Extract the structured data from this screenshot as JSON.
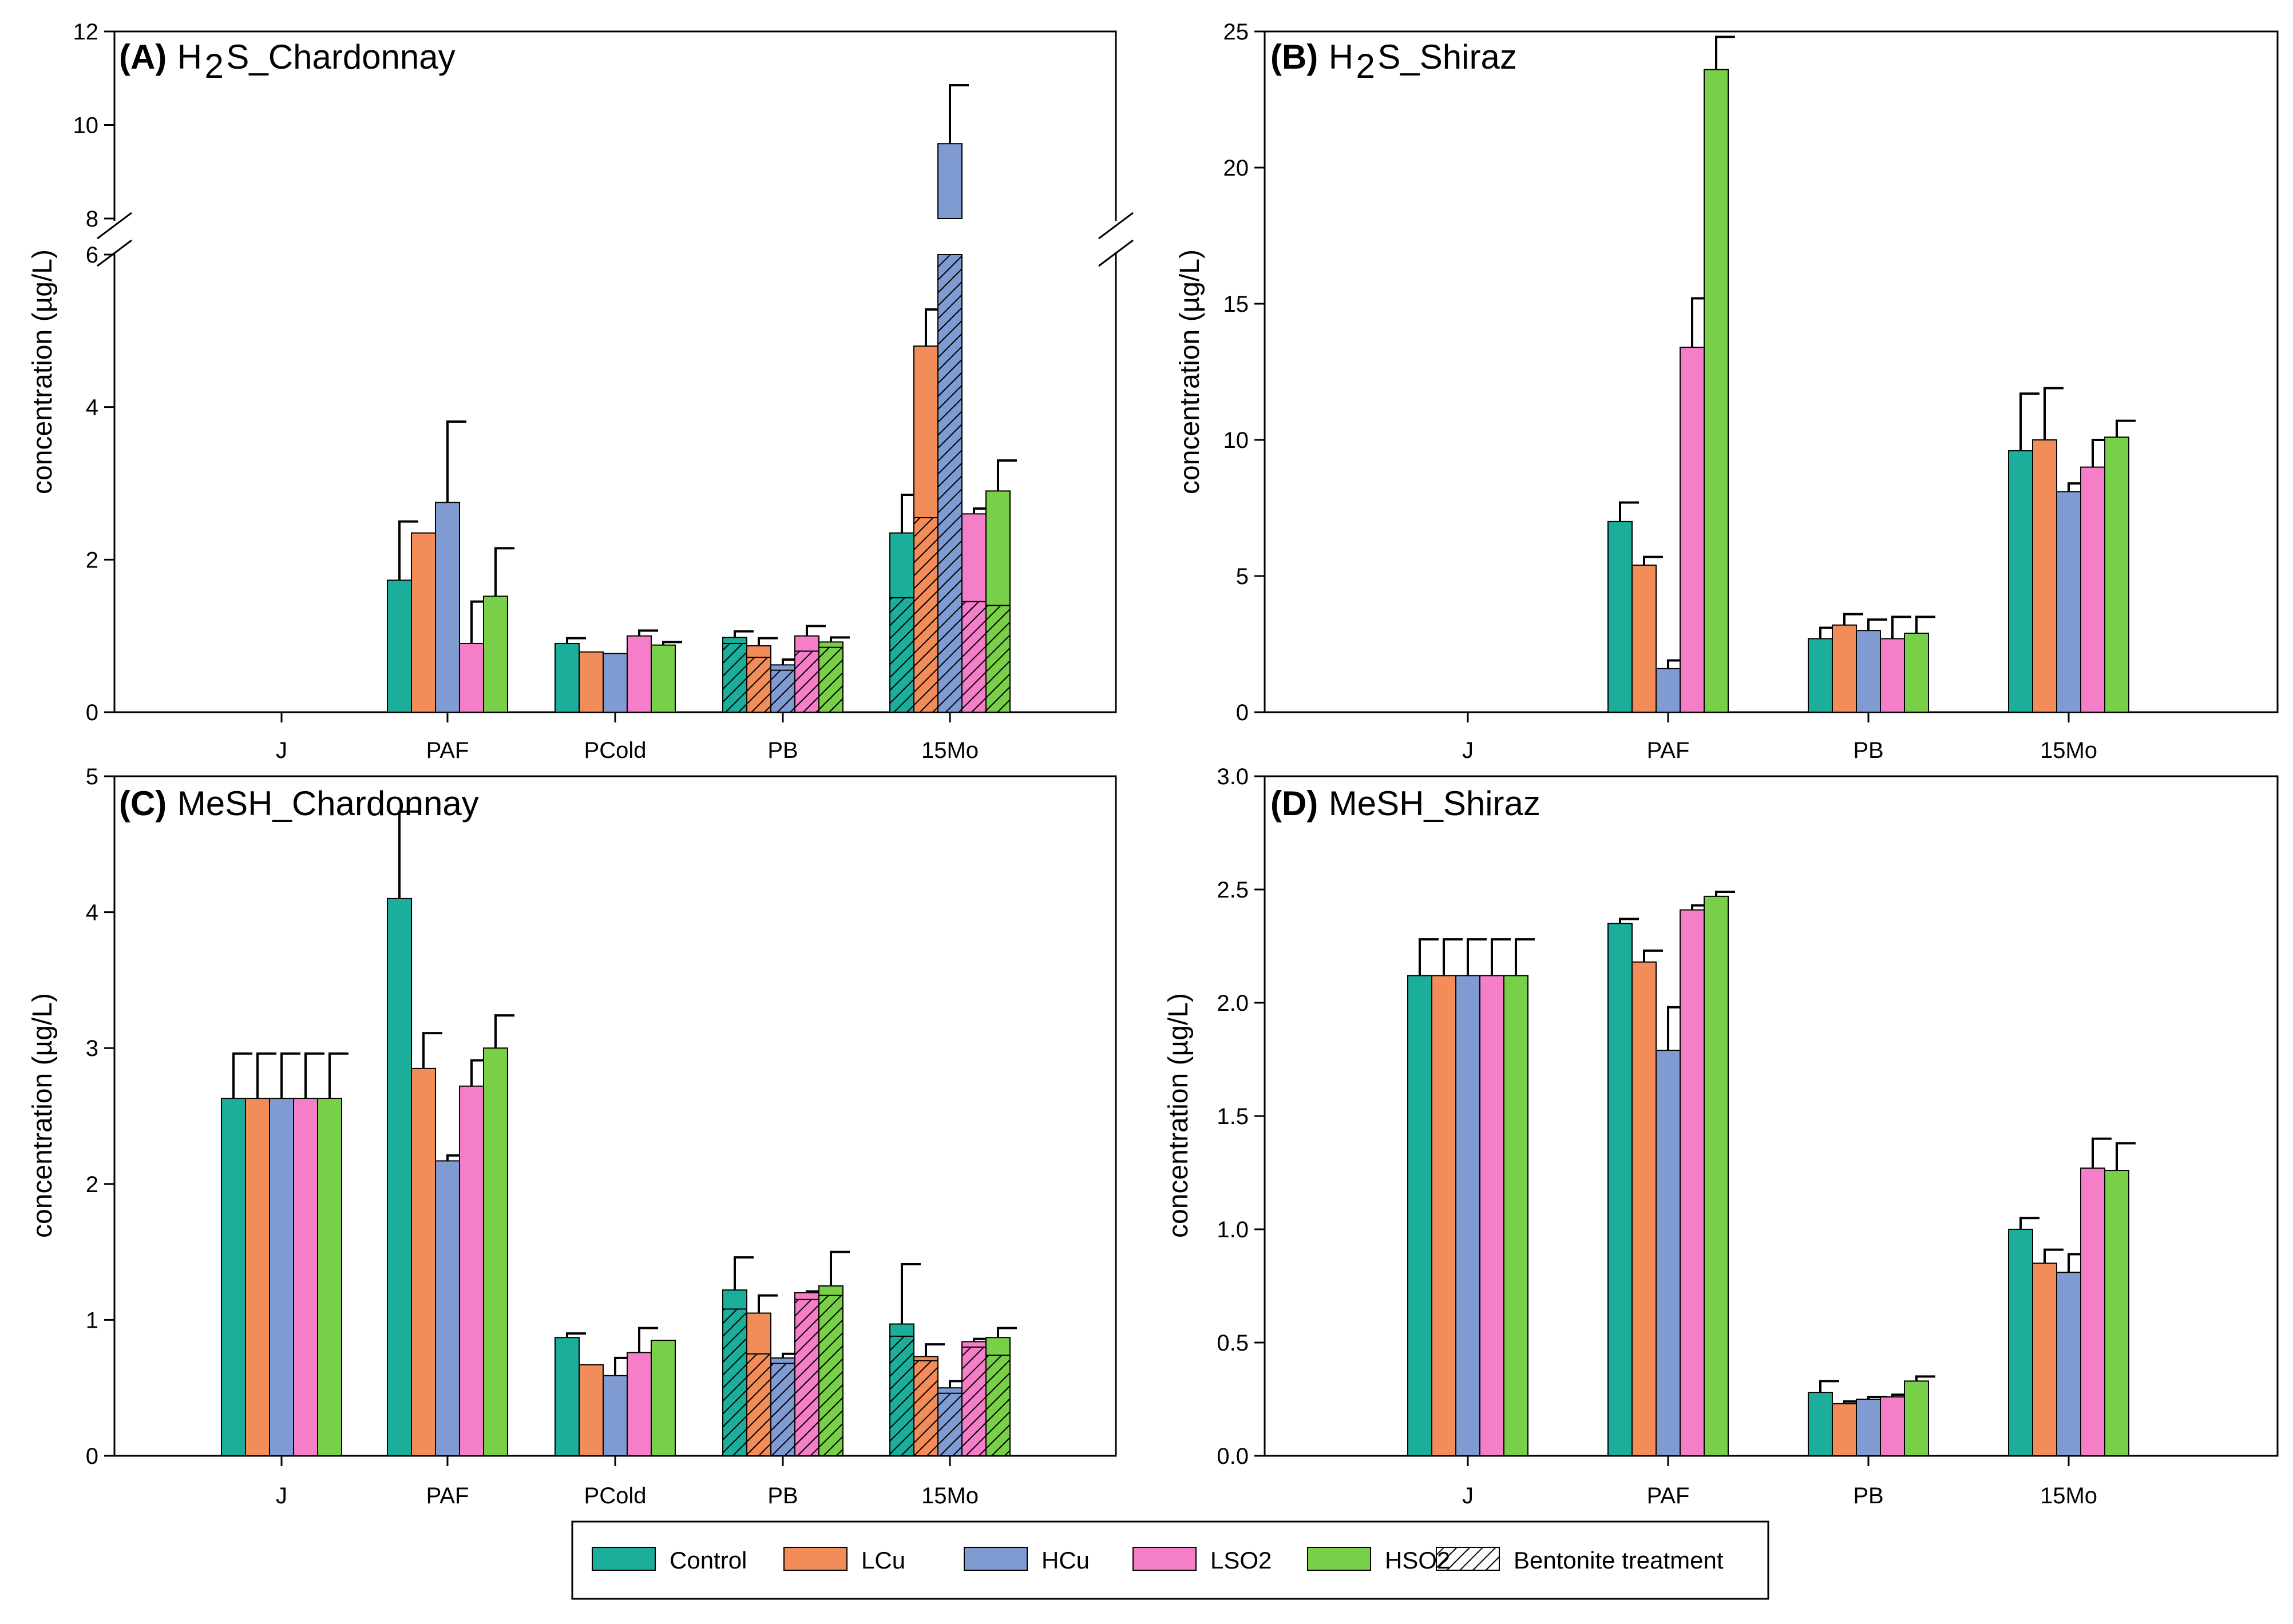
{
  "colors": {
    "Control": "#1bae9a",
    "LCu": "#f28c58",
    "HCu": "#7f9bd1",
    "LSO2": "#f47ec8",
    "HSO2": "#78cf48"
  },
  "legend": {
    "items": [
      "Control",
      "LCu",
      "HCu",
      "LSO2",
      "HSO2"
    ],
    "bentonite_label": "Bentonite treatment"
  },
  "chart_data": [
    {
      "type": "bar",
      "panel": "(A)",
      "title_main": "H",
      "title_sub": "2",
      "title_rest": "S_Chardonnay",
      "ylabel": "concentration (µg/L)",
      "xlabel": "",
      "categories": [
        "J",
        "PAF",
        "PCold",
        "PB",
        "15Mo"
      ],
      "axis_break": {
        "lower": [
          0,
          6
        ],
        "upper": [
          8,
          12
        ]
      },
      "yticks_lower": [
        "0",
        "2",
        "4",
        "6"
      ],
      "yticks_upper": [
        "8",
        "10",
        "12"
      ],
      "series": [
        {
          "name": "Control",
          "values": [
            null,
            1.73,
            0.9,
            0.98,
            2.35
          ],
          "errors": [
            null,
            0.77,
            0.07,
            0.08,
            0.5
          ]
        },
        {
          "name": "LCu",
          "values": [
            null,
            2.35,
            0.79,
            0.87,
            4.8
          ],
          "errors": [
            null,
            0,
            0,
            0.1,
            0.48
          ]
        },
        {
          "name": "HCu",
          "values": [
            null,
            2.75,
            0.77,
            0.62,
            9.6
          ],
          "errors": [
            null,
            1.06,
            0,
            0.07,
            1.25
          ]
        },
        {
          "name": "LSO2",
          "values": [
            null,
            0.9,
            1.0,
            1.0,
            2.6
          ],
          "errors": [
            null,
            0.55,
            0.07,
            0.13,
            0.07
          ]
        },
        {
          "name": "HSO2",
          "values": [
            null,
            1.52,
            0.88,
            0.92,
            2.9
          ],
          "errors": [
            null,
            0.63,
            0.04,
            0.06,
            0.4
          ]
        }
      ],
      "bentonite": [
        {
          "category": "PB",
          "values": [
            0.9,
            0.72,
            0.55,
            0.8,
            0.85
          ]
        },
        {
          "category": "15Mo",
          "values": [
            1.5,
            2.55,
            6.0,
            1.45,
            1.4
          ]
        }
      ]
    },
    {
      "type": "bar",
      "panel": "(B)",
      "title_main": "H",
      "title_sub": "2",
      "title_rest": "S_Shiraz",
      "ylabel": "concentration (µg/L)",
      "xlabel": "",
      "categories": [
        "J",
        "PAF",
        "PB",
        "15Mo"
      ],
      "ylim": [
        0,
        25
      ],
      "yticks": [
        "0",
        "5",
        "10",
        "15",
        "20",
        "25"
      ],
      "series": [
        {
          "name": "Control",
          "values": [
            null,
            7.0,
            2.7,
            9.6
          ],
          "errors": [
            null,
            0.7,
            0.4,
            2.1
          ]
        },
        {
          "name": "LCu",
          "values": [
            null,
            5.4,
            3.2,
            10.0
          ],
          "errors": [
            null,
            0.3,
            0.4,
            1.9
          ]
        },
        {
          "name": "HCu",
          "values": [
            null,
            1.6,
            3.0,
            8.1
          ],
          "errors": [
            null,
            0.3,
            0.4,
            0.3
          ]
        },
        {
          "name": "LSO2",
          "values": [
            null,
            13.4,
            2.7,
            9.0
          ],
          "errors": [
            null,
            1.8,
            0.8,
            1.0
          ]
        },
        {
          "name": "HSO2",
          "values": [
            null,
            23.6,
            2.9,
            10.1
          ],
          "errors": [
            null,
            1.2,
            0.6,
            0.6
          ]
        }
      ]
    },
    {
      "type": "bar",
      "panel": "(C)",
      "title_main": "MeSH_Chardonnay",
      "title_sub": "",
      "title_rest": "",
      "ylabel": "concentration (µg/L)",
      "xlabel": "",
      "categories": [
        "J",
        "PAF",
        "PCold",
        "PB",
        "15Mo"
      ],
      "ylim": [
        0,
        5
      ],
      "yticks": [
        "0",
        "1",
        "2",
        "3",
        "4",
        "5"
      ],
      "series": [
        {
          "name": "Control",
          "values": [
            2.63,
            4.1,
            0.87,
            1.22,
            0.97
          ],
          "errors": [
            0.33,
            0.64,
            0.03,
            0.24,
            0.44
          ]
        },
        {
          "name": "LCu",
          "values": [
            2.63,
            2.85,
            0.67,
            1.05,
            0.73
          ],
          "errors": [
            0.33,
            0.26,
            0,
            0.13,
            0.09
          ]
        },
        {
          "name": "HCu",
          "values": [
            2.63,
            2.17,
            0.59,
            0.72,
            0.5
          ],
          "errors": [
            0.33,
            0.04,
            0.13,
            0.03,
            0.05
          ]
        },
        {
          "name": "LSO2",
          "values": [
            2.63,
            2.72,
            0.76,
            1.2,
            0.84
          ],
          "errors": [
            0.33,
            0.19,
            0.18,
            0.01,
            0.02
          ]
        },
        {
          "name": "HSO2",
          "values": [
            2.63,
            3.0,
            0.85,
            1.25,
            0.87
          ],
          "errors": [
            0.33,
            0.24,
            0,
            0.25,
            0.07
          ]
        }
      ],
      "bentonite": [
        {
          "category": "PB",
          "values": [
            1.08,
            0.75,
            0.68,
            1.15,
            1.18
          ]
        },
        {
          "category": "15Mo",
          "values": [
            0.88,
            0.7,
            0.46,
            0.8,
            0.74
          ]
        }
      ]
    },
    {
      "type": "bar",
      "panel": "(D)",
      "title_main": "MeSH_Shiraz",
      "title_sub": "",
      "title_rest": "",
      "ylabel": "concentration (µg/L)",
      "xlabel": "",
      "categories": [
        "J",
        "PAF",
        "PB",
        "15Mo"
      ],
      "ylim": [
        0,
        3
      ],
      "yticks": [
        "0.0",
        "0.5",
        "1.0",
        "1.5",
        "2.0",
        "2.5",
        "3.0"
      ],
      "series": [
        {
          "name": "Control",
          "values": [
            2.12,
            2.35,
            0.28,
            1.0
          ],
          "errors": [
            0.16,
            0.02,
            0.05,
            0.05
          ]
        },
        {
          "name": "LCu",
          "values": [
            2.12,
            2.18,
            0.23,
            0.85
          ],
          "errors": [
            0.16,
            0.05,
            0.01,
            0.06
          ]
        },
        {
          "name": "HCu",
          "values": [
            2.12,
            1.79,
            0.25,
            0.81
          ],
          "errors": [
            0.16,
            0.19,
            0.01,
            0.08
          ]
        },
        {
          "name": "LSO2",
          "values": [
            2.12,
            2.41,
            0.26,
            1.27
          ],
          "errors": [
            0.16,
            0.02,
            0.01,
            0.13
          ]
        },
        {
          "name": "HSO2",
          "values": [
            2.12,
            2.47,
            0.33,
            1.26
          ],
          "errors": [
            0.16,
            0.02,
            0.02,
            0.12
          ]
        }
      ]
    }
  ]
}
